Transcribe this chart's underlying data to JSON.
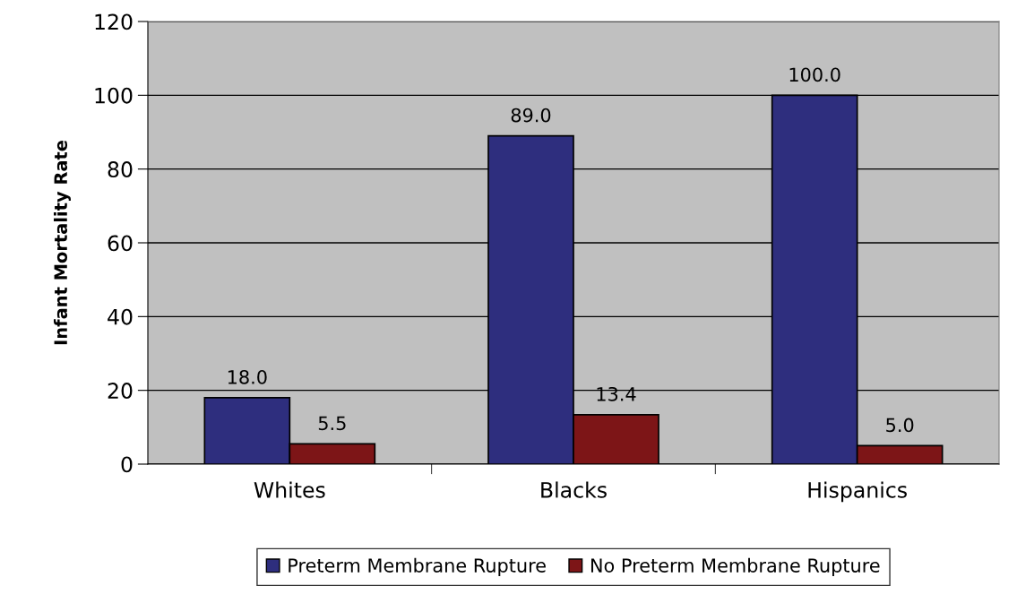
{
  "chart_data": {
    "type": "bar",
    "ylabel": "Infant Mortality Rate",
    "categories": [
      "Whites",
      "Blacks",
      "Hispanics"
    ],
    "series": [
      {
        "name": "Preterm Membrane Rupture",
        "color": "#2e2e7e",
        "values": [
          18.0,
          89.0,
          100.0
        ],
        "value_labels": [
          "18.0",
          "89.0",
          "100.0"
        ]
      },
      {
        "name": "No Preterm Membrane Rupture",
        "color": "#7d1517",
        "values": [
          5.5,
          13.4,
          5.0
        ],
        "value_labels": [
          "5.5",
          "13.4",
          "5.0"
        ]
      }
    ],
    "ylim": [
      0,
      120
    ],
    "yticks": [
      0,
      20,
      40,
      60,
      80,
      100,
      120
    ],
    "grid": "y",
    "legend": "bottom"
  }
}
